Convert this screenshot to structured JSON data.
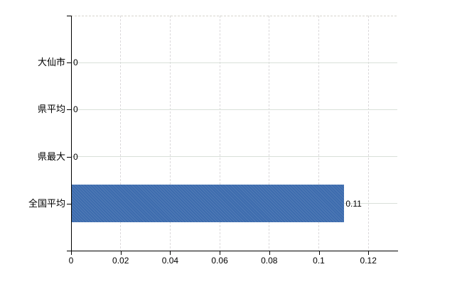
{
  "chart_data": {
    "type": "bar",
    "orientation": "horizontal",
    "title": "",
    "xlabel": "",
    "ylabel": "",
    "categories": [
      "大仙市",
      "県平均",
      "県最大",
      "全国平均"
    ],
    "series": [
      {
        "name": "値",
        "values": [
          0,
          0,
          0,
          0.11
        ]
      }
    ],
    "value_labels": [
      "0",
      "0",
      "0",
      "0.11"
    ],
    "x_ticks": [
      0,
      0.02,
      0.04,
      0.06,
      0.08,
      0.1,
      0.12
    ],
    "x_tick_labels": [
      "0",
      "0.02",
      "0.04",
      "0.06",
      "0.08",
      "0.1",
      "0.12"
    ],
    "xlim": [
      0,
      0.1317
    ],
    "grid": true,
    "legend_position": "none"
  },
  "colors": {
    "background": "#ffffff",
    "bar": "#3d6cae",
    "axis": "#000000",
    "text": "#000000",
    "h_gridline": "#d9e0d9",
    "v_gridline": "#dbd9db",
    "top_border": "#d8d4cd"
  }
}
